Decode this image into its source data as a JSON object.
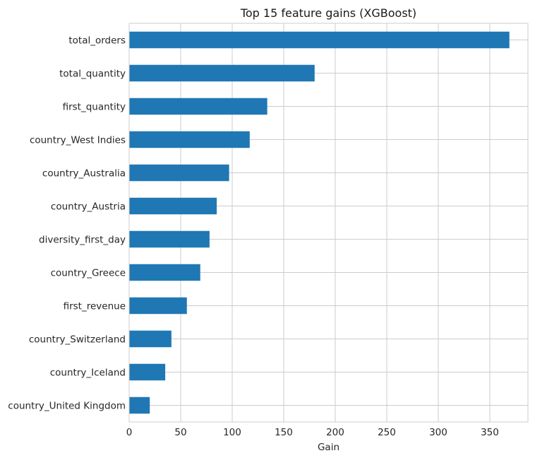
{
  "chart_data": {
    "type": "bar",
    "orientation": "horizontal",
    "title": "Top 15 feature gains (XGBoost)",
    "xlabel": "Gain",
    "ylabel": "",
    "categories": [
      "total_orders",
      "total_quantity",
      "first_quantity",
      "country_West Indies",
      "country_Australia",
      "country_Austria",
      "diversity_first_day",
      "country_Greece",
      "first_revenue",
      "country_Switzerland",
      "country_Iceland",
      "country_United Kingdom"
    ],
    "values": [
      369,
      180,
      134,
      117,
      97,
      85,
      78,
      69,
      56,
      41,
      35,
      20
    ],
    "xlim": [
      0,
      387
    ],
    "xticks": [
      0,
      50,
      100,
      150,
      200,
      250,
      300,
      350
    ],
    "grid": true,
    "legend": "none",
    "bar_color": "#1f77b4"
  }
}
